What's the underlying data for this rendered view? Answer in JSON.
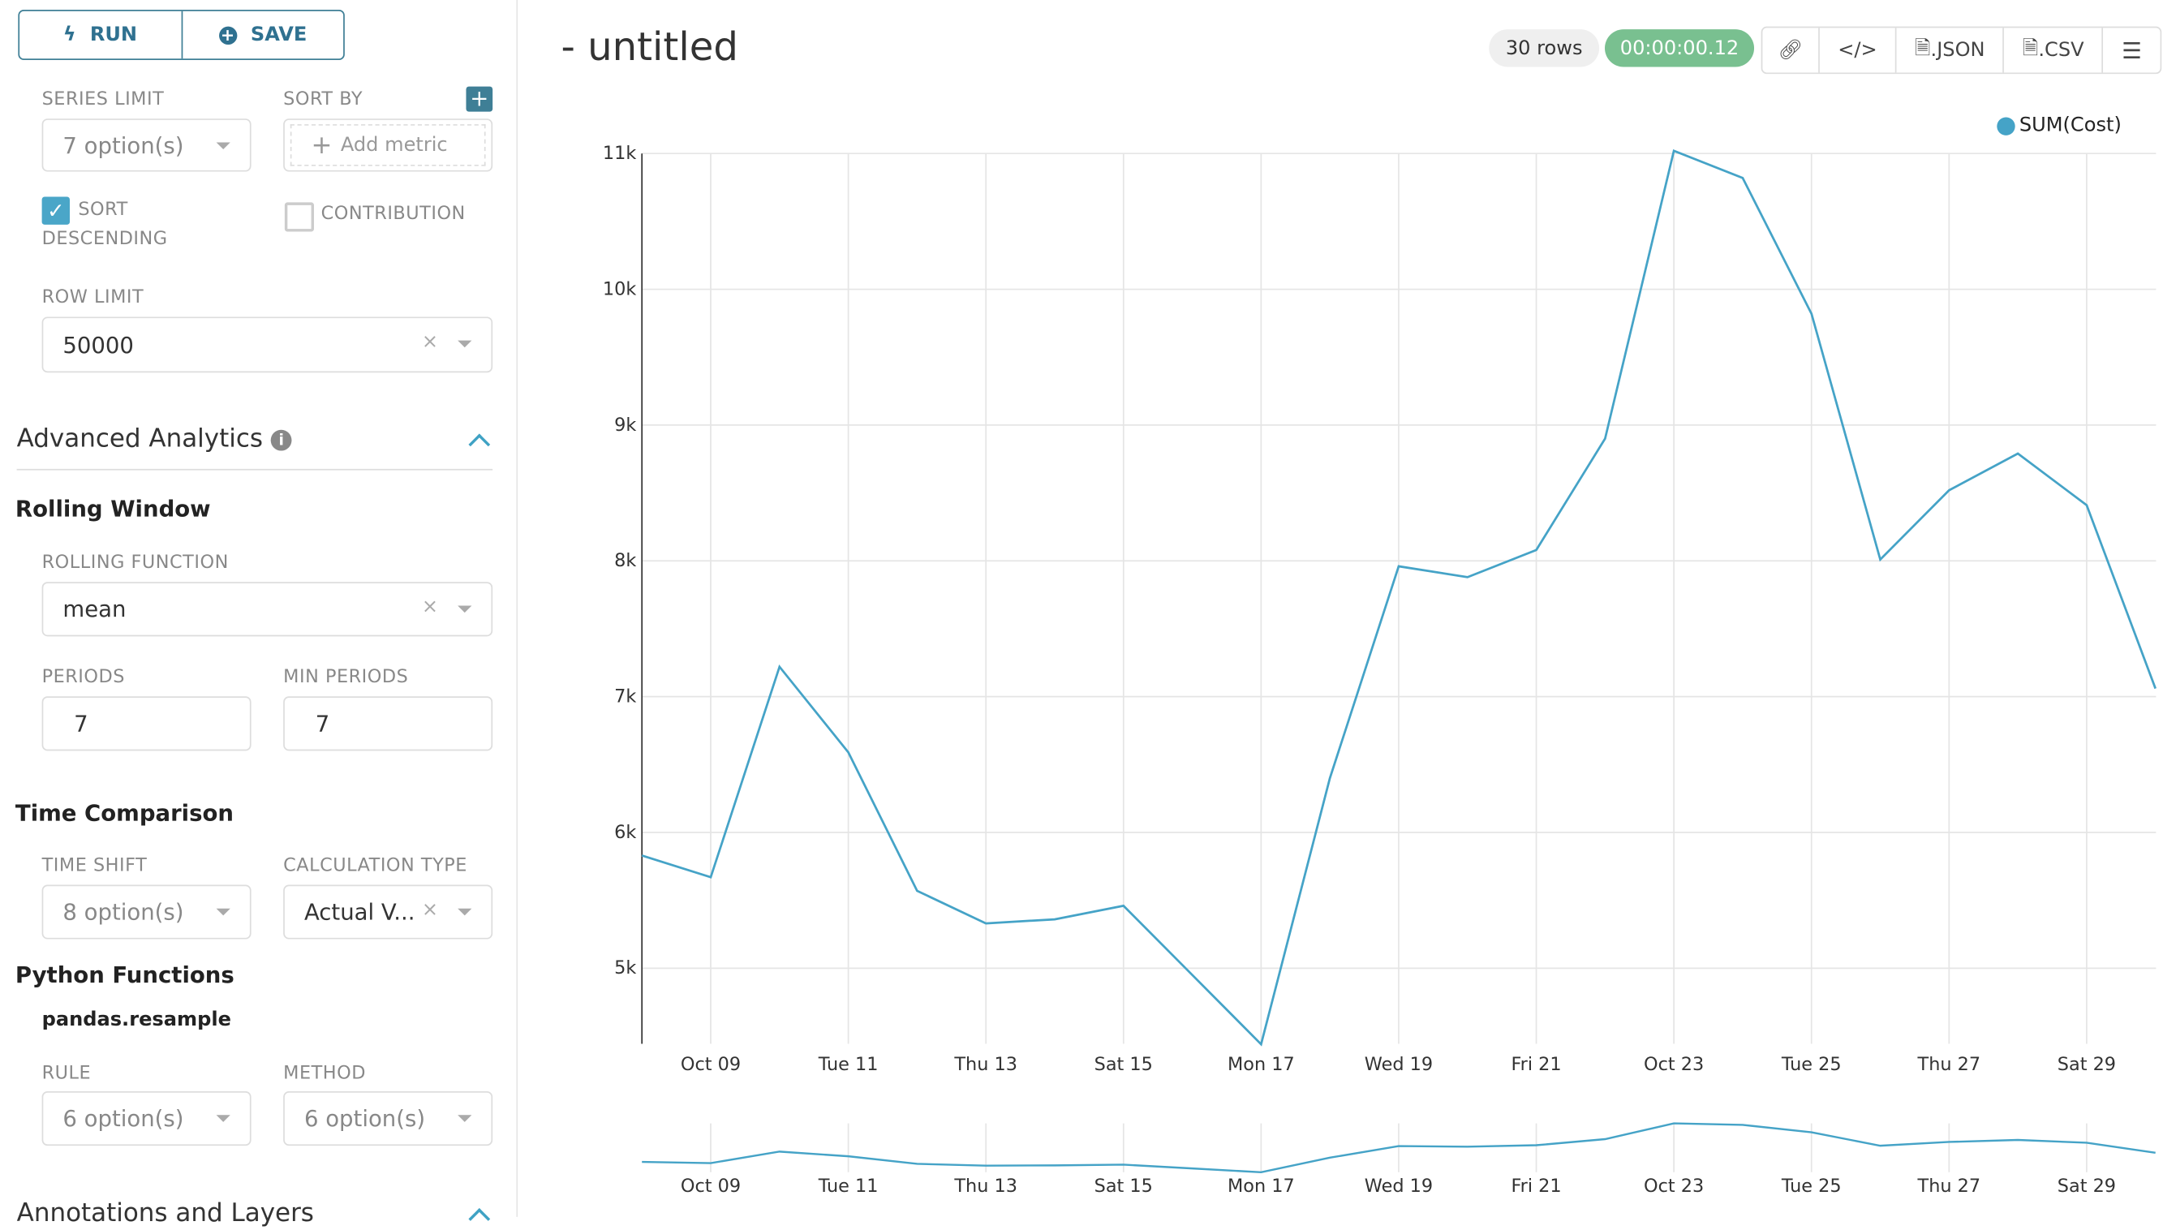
{
  "toolbar": {
    "run_label": "RUN",
    "save_label": "SAVE"
  },
  "controls": {
    "series_limit": {
      "label": "SERIES LIMIT",
      "value": "7 option(s)"
    },
    "sort_by": {
      "label": "SORT BY",
      "placeholder": "Add metric"
    },
    "sort_descending": {
      "label_1": "SORT",
      "label_2": "DESCENDING",
      "checked": true
    },
    "contribution": {
      "label": "CONTRIBUTION",
      "checked": false
    },
    "row_limit": {
      "label": "ROW LIMIT",
      "value": "50000"
    }
  },
  "advanced": {
    "title": "Advanced Analytics",
    "rolling": {
      "title": "Rolling Window",
      "function_label": "ROLLING FUNCTION",
      "function_value": "mean",
      "periods_label": "PERIODS",
      "periods_value": "7",
      "min_periods_label": "MIN PERIODS",
      "min_periods_value": "7"
    },
    "time_comparison": {
      "title": "Time Comparison",
      "time_shift_label": "TIME SHIFT",
      "time_shift_value": "8 option(s)",
      "calc_type_label": "CALCULATION TYPE",
      "calc_type_value": "Actual V..."
    },
    "python": {
      "title": "Python Functions",
      "subtitle": "pandas.resample",
      "rule_label": "RULE",
      "rule_value": "6 option(s)",
      "method_label": "METHOD",
      "method_value": "6 option(s)"
    }
  },
  "annotations": {
    "title": "Annotations and Layers"
  },
  "header": {
    "title": "- untitled",
    "rows": "30 rows",
    "timer": "00:00:00.12",
    "json_label": ".JSON",
    "csv_label": ".CSV"
  },
  "colors": {
    "accent": "#2f7190",
    "line": "#45a3c7",
    "timer_bg": "#79c090"
  },
  "chart_data": {
    "type": "line",
    "legend": "SUM(Cost)",
    "legend_position": "top-right",
    "x": [
      "Oct 08",
      "Oct 09",
      "Oct 10",
      "Oct 11",
      "Oct 12",
      "Oct 13",
      "Oct 14",
      "Oct 15",
      "Oct 16",
      "Oct 17",
      "Oct 18",
      "Oct 19",
      "Oct 20",
      "Oct 21",
      "Oct 22",
      "Oct 23",
      "Oct 24",
      "Oct 25",
      "Oct 26",
      "Oct 27",
      "Oct 28",
      "Oct 29",
      "Oct 30"
    ],
    "series": [
      {
        "name": "SUM(Cost)",
        "values": [
          5830,
          5670,
          7220,
          6590,
          5570,
          5330,
          5360,
          5460,
          4950,
          4440,
          6400,
          7960,
          7880,
          8080,
          8900,
          11020,
          10820,
          9820,
          8010,
          8520,
          8790,
          8410,
          7060
        ]
      }
    ],
    "x_tick_labels": [
      "Oct 09",
      "Tue 11",
      "Thu 13",
      "Sat 15",
      "Mon 17",
      "Wed 19",
      "Fri 21",
      "Oct 23",
      "Tue 25",
      "Thu 27",
      "Sat 29"
    ],
    "y_tick_labels": [
      "5k",
      "6k",
      "7k",
      "8k",
      "9k",
      "10k",
      "11k"
    ],
    "ylim": [
      4440,
      11020
    ],
    "grid": true
  }
}
